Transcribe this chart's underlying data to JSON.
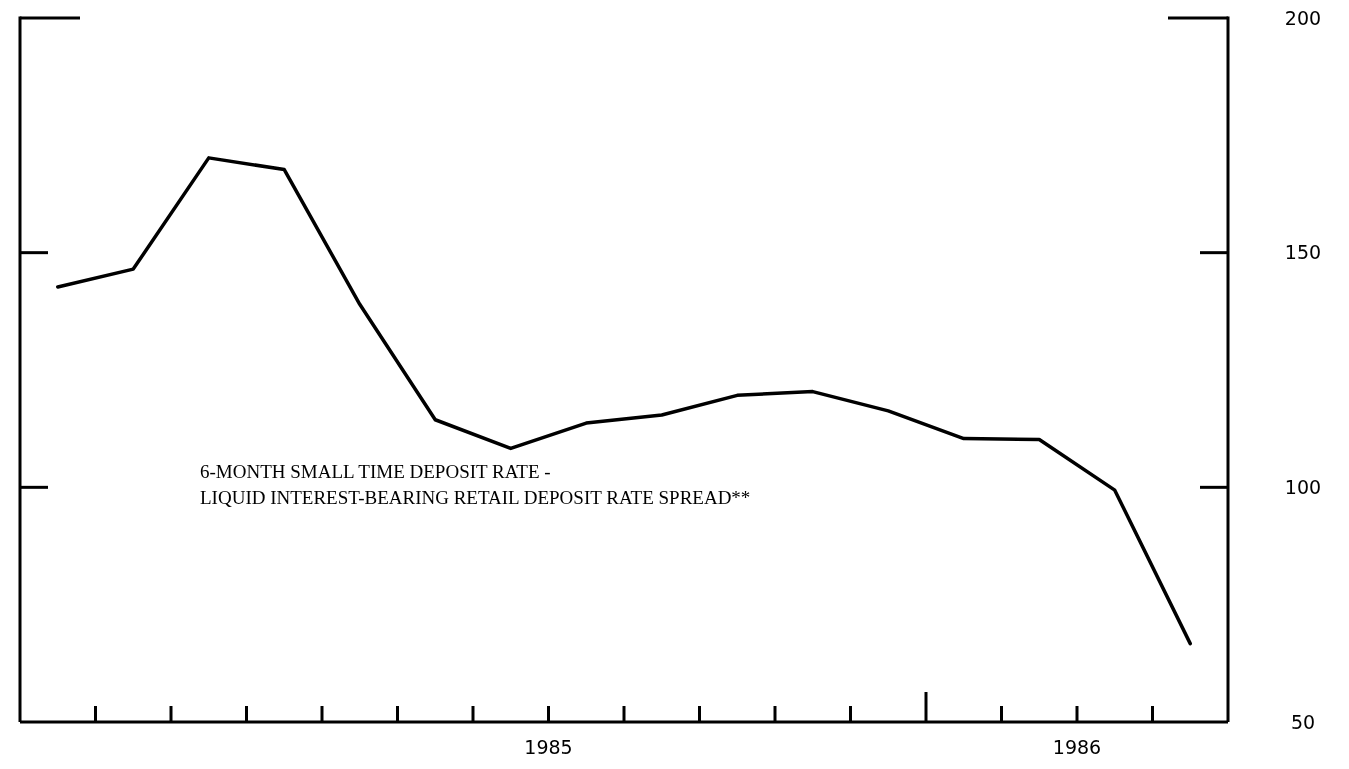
{
  "chart_data": {
    "type": "line",
    "categories": [
      null,
      null,
      null,
      null,
      null,
      null,
      null,
      null,
      null,
      null,
      null,
      null,
      null,
      null,
      null,
      null
    ],
    "series": [
      {
        "color": "#000000",
        "values": [
          142.7,
          146.5,
          170.2,
          167.7,
          139,
          114.4,
          108.3,
          113.7,
          115.4,
          119.6,
          120.4,
          116.3,
          110.4,
          110.2,
          99.4,
          66.7
        ]
      }
    ],
    "ylim": [
      50,
      200
    ],
    "yticks": [
      50,
      100,
      150,
      200
    ],
    "annotations": [
      "6-MONTH SMALL TIME DEPOSIT RATE -",
      "LIQUID INTEREST-BEARING RETAIL DEPOSIT RATE SPREAD**",
      "1985",
      "1986"
    ]
  }
}
